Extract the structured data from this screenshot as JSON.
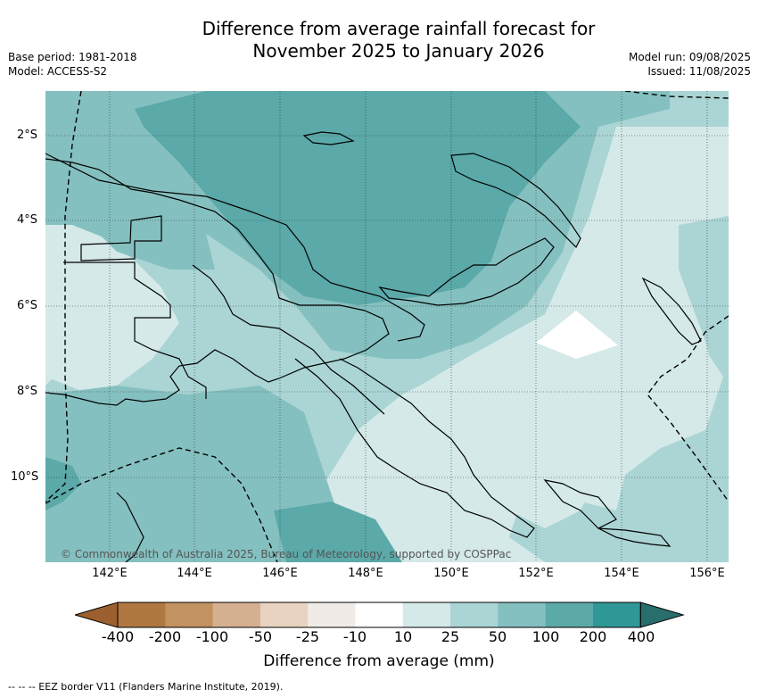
{
  "title_line1": "Difference from average rainfall forecast for",
  "title_line2": "November 2025 to January 2026",
  "base_period": "Base period: 1981-2018",
  "model": "Model: ACCESS-S2",
  "model_run": "Model run: 09/08/2025",
  "issued": "Issued: 11/08/2025",
  "copyright": "© Commonwealth of Australia 2025, Bureau of Meteorology, supported by COSPPac",
  "lat_labels": [
    "2°S",
    "4°S",
    "6°S",
    "8°S",
    "10°S"
  ],
  "lon_labels": [
    "142°E",
    "144°E",
    "146°E",
    "148°E",
    "150°E",
    "152°E",
    "154°E",
    "156°E"
  ],
  "colorbar": {
    "ticks": [
      "-400",
      "-200",
      "-100",
      "-50",
      "-25",
      "-10",
      "10",
      "25",
      "50",
      "100",
      "200",
      "400"
    ],
    "colors": [
      "#9c6030",
      "#ae7840",
      "#c39262",
      "#d4b090",
      "#e8d3c0",
      "#f0ebe6",
      "#ffffff",
      "#d4e9e8",
      "#aad5d4",
      "#84c0bf",
      "#5ba9a9",
      "#2f9796",
      "#286e6c"
    ],
    "label": "Difference from average (mm)"
  },
  "footnote": "--  --  -- EEZ border V11 (Flanders Marine Institute, 2019).",
  "map_colors": {
    "c10_25": "#d4e9e8",
    "c25_50": "#aad5d4",
    "c50_100": "#84c0bf",
    "c100_200": "#5ba9a9",
    "blank": "#ffffff"
  }
}
